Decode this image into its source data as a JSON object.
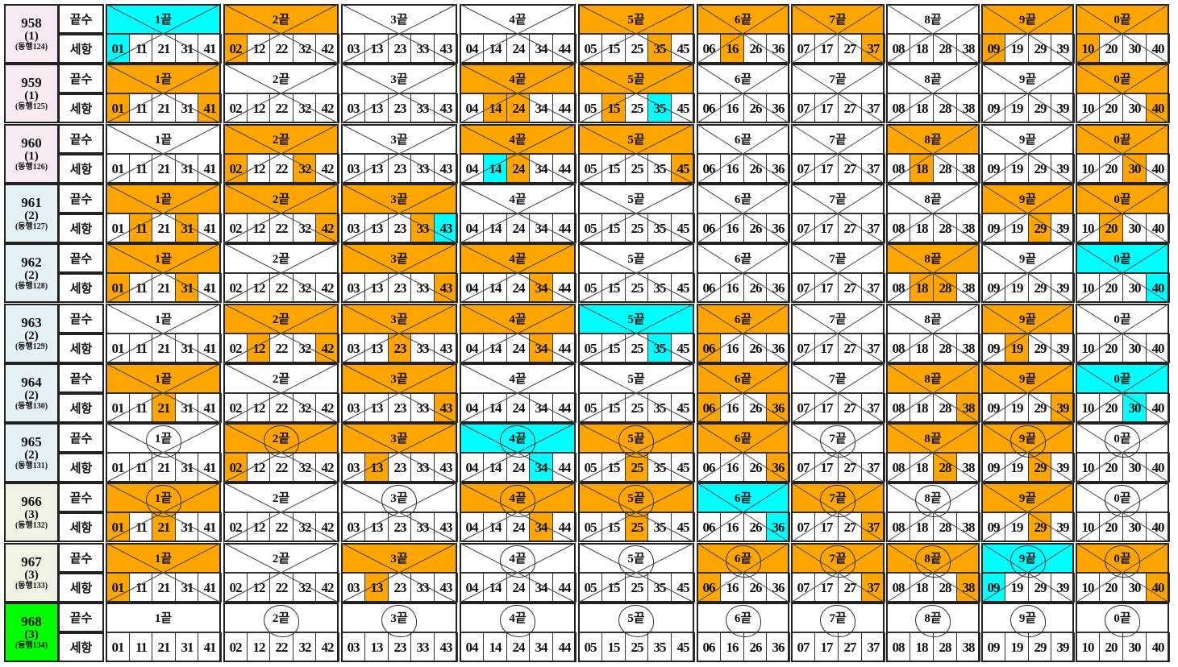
{
  "labels": {
    "ending": "끝수",
    "detail": "세항"
  },
  "colors": {
    "O": "#ffa500",
    "C": "#00ffff",
    "W": "#ffffff",
    "pink": "#f8eaf2",
    "blue": "#e4f1f5",
    "olive": "#eef3e4",
    "green": "#00ff00"
  },
  "groups": [
    {
      "label": "1끝",
      "numbers": [
        "01",
        "11",
        "21",
        "31",
        "41"
      ]
    },
    {
      "label": "2끝",
      "numbers": [
        "02",
        "12",
        "22",
        "32",
        "42"
      ]
    },
    {
      "label": "3끝",
      "numbers": [
        "03",
        "13",
        "23",
        "33",
        "43"
      ]
    },
    {
      "label": "4끝",
      "numbers": [
        "04",
        "14",
        "24",
        "34",
        "44"
      ]
    },
    {
      "label": "5끝",
      "numbers": [
        "05",
        "15",
        "25",
        "35",
        "45"
      ]
    },
    {
      "label": "6끝",
      "numbers": [
        "06",
        "16",
        "26",
        "36"
      ]
    },
    {
      "label": "7끝",
      "numbers": [
        "07",
        "17",
        "27",
        "37"
      ]
    },
    {
      "label": "8끝",
      "numbers": [
        "08",
        "18",
        "28",
        "38"
      ]
    },
    {
      "label": "9끝",
      "numbers": [
        "09",
        "19",
        "29",
        "39"
      ]
    },
    {
      "label": "0끝",
      "numbers": [
        "10",
        "20",
        "30",
        "40"
      ]
    }
  ],
  "rows": [
    {
      "round": "958",
      "count": "(1)",
      "companion": "(동행124)",
      "label_color": "pink",
      "headers": "COWWOOOWOO",
      "hits": {
        "01": "C",
        "02": "O",
        "35": "O",
        "16": "O",
        "37": "O",
        "09": "O",
        "10": "O"
      },
      "circled": [],
      "crossed": true
    },
    {
      "round": "959",
      "count": "(1)",
      "companion": "(동행125)",
      "label_color": "pink",
      "headers": "OWWOOWWWWO",
      "hits": {
        "01": "O",
        "41": "O",
        "14": "O",
        "24": "O",
        "15": "O",
        "35": "C",
        "40": "O"
      },
      "circled": [],
      "crossed": true
    },
    {
      "round": "960",
      "count": "(1)",
      "companion": "(동행126)",
      "label_color": "pink",
      "headers": "WOWOOWWOWO",
      "hits": {
        "02": "O",
        "32": "O",
        "14": "C",
        "24": "O",
        "45": "O",
        "18": "O",
        "30": "O"
      },
      "circled": [],
      "crossed": true
    },
    {
      "round": "961",
      "count": "(2)",
      "companion": "(동행127)",
      "label_color": "blue",
      "headers": "OOOWWWWWOO",
      "hits": {
        "11": "O",
        "31": "O",
        "42": "O",
        "33": "O",
        "43": "C",
        "29": "O",
        "20": "O"
      },
      "circled": [],
      "crossed": true
    },
    {
      "round": "962",
      "count": "(2)",
      "companion": "(동행128)",
      "label_color": "blue",
      "headers": "OWOOWWWOWC",
      "hits": {
        "01": "O",
        "31": "O",
        "43": "O",
        "34": "O",
        "18": "O",
        "28": "O",
        "40": "C"
      },
      "circled": [],
      "crossed": true
    },
    {
      "round": "963",
      "count": "(2)",
      "companion": "(동행129)",
      "label_color": "blue",
      "headers": "WOOOCOWWOW",
      "hits": {
        "12": "O",
        "42": "O",
        "23": "O",
        "34": "O",
        "35": "C",
        "06": "O",
        "19": "O"
      },
      "circled": [],
      "crossed": true
    },
    {
      "round": "964",
      "count": "(2)",
      "companion": "(동행130)",
      "label_color": "blue",
      "headers": "OWOWWOWOOC",
      "hits": {
        "21": "O",
        "43": "O",
        "06": "O",
        "36": "O",
        "38": "O",
        "39": "O",
        "30": "C"
      },
      "circled": [],
      "crossed": true
    },
    {
      "round": "965",
      "count": "(2)",
      "companion": "(동행131)",
      "label_color": "blue",
      "headers": "WOOCOOWOOW",
      "hits": {
        "02": "O",
        "13": "O",
        "34": "C",
        "25": "O",
        "36": "O",
        "28": "O",
        "29": "O"
      },
      "circled": [
        0,
        1,
        3,
        4,
        6,
        8,
        9
      ],
      "crossed": true
    },
    {
      "round": "966",
      "count": "(3)",
      "companion": "(동행132)",
      "label_color": "olive",
      "headers": "OWWOOCOWOW",
      "hits": {
        "01": "O",
        "21": "O",
        "34": "O",
        "25": "O",
        "36": "C",
        "37": "O",
        "29": "O"
      },
      "circled": [
        0,
        2,
        3,
        4,
        6,
        7,
        9
      ],
      "crossed": true
    },
    {
      "round": "967",
      "count": "(3)",
      "companion": "(동행133)",
      "label_color": "olive",
      "headers": "OWOWWOOOCO",
      "hits": {
        "01": "O",
        "13": "O",
        "06": "O",
        "37": "O",
        "38": "O",
        "09": "C",
        "40": "O"
      },
      "circled": [
        3,
        4,
        5,
        6,
        7,
        8,
        9
      ],
      "crossed": true
    },
    {
      "round": "968",
      "count": "(3)",
      "companion": "(동행134)",
      "label_color": "green",
      "headers": "WWWWWWWWWW",
      "hits": {},
      "circled": [
        1,
        2,
        3,
        4,
        5,
        6,
        7,
        8,
        9
      ],
      "crossed": false
    }
  ]
}
